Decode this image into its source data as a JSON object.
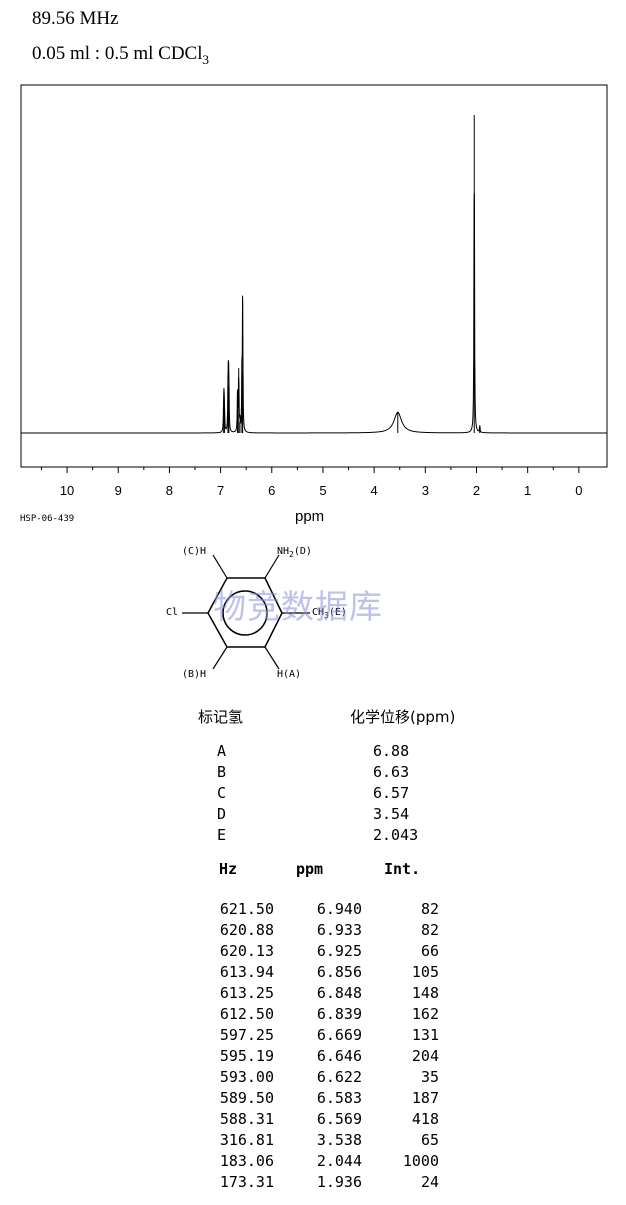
{
  "header": {
    "frequency": "89.56 MHz",
    "sample": "0.05 ml : 0.5 ml CDCl",
    "sample_subscript": "3"
  },
  "chart_data": {
    "type": "line",
    "title": "",
    "xlabel": "ppm",
    "ylabel": "",
    "xlim": [
      10.9,
      -0.55
    ],
    "x_reversed": true,
    "x_ticks": [
      "10",
      "9",
      "8",
      "7",
      "6",
      "5",
      "4",
      "3",
      "2",
      "1",
      "0"
    ],
    "grid": false,
    "peaks": [
      {
        "ppm": 6.94,
        "int": 82
      },
      {
        "ppm": 6.933,
        "int": 82
      },
      {
        "ppm": 6.925,
        "int": 66
      },
      {
        "ppm": 6.856,
        "int": 105
      },
      {
        "ppm": 6.848,
        "int": 148
      },
      {
        "ppm": 6.839,
        "int": 162
      },
      {
        "ppm": 6.669,
        "int": 131
      },
      {
        "ppm": 6.646,
        "int": 204
      },
      {
        "ppm": 6.622,
        "int": 35
      },
      {
        "ppm": 6.583,
        "int": 187
      },
      {
        "ppm": 6.569,
        "int": 418
      },
      {
        "ppm": 3.538,
        "int": 65
      },
      {
        "ppm": 2.044,
        "int": 1000
      },
      {
        "ppm": 1.936,
        "int": 24
      }
    ]
  },
  "spectrum_code": "HSP-06-439",
  "structure": {
    "label_c": "(C)H",
    "label_nh2": "NH",
    "label_nh2_sub": "2",
    "label_d": "(D)",
    "label_cl": "Cl",
    "label_ch3": "CH",
    "label_ch3_sub": "3",
    "label_e": "(E)",
    "label_b": "(B)H",
    "label_a": "H(A)"
  },
  "watermark": "物竞数据库",
  "assignments": {
    "col1": "标记氢",
    "col2": "化学位移(ppm)",
    "rows": [
      {
        "label": "A",
        "shift": "6.88"
      },
      {
        "label": "B",
        "shift": "6.63"
      },
      {
        "label": "C",
        "shift": "6.57"
      },
      {
        "label": "D",
        "shift": "3.54"
      },
      {
        "label": "E",
        "shift": "2.043"
      }
    ]
  },
  "peak_table": {
    "headers": [
      "Hz",
      "ppm",
      "Int."
    ],
    "rows": [
      [
        "621.50",
        "6.940",
        "82"
      ],
      [
        "620.88",
        "6.933",
        "82"
      ],
      [
        "620.13",
        "6.925",
        "66"
      ],
      [
        "613.94",
        "6.856",
        "105"
      ],
      [
        "613.25",
        "6.848",
        "148"
      ],
      [
        "612.50",
        "6.839",
        "162"
      ],
      [
        "597.25",
        "6.669",
        "131"
      ],
      [
        "595.19",
        "6.646",
        "204"
      ],
      [
        "593.00",
        "6.622",
        "35"
      ],
      [
        "589.50",
        "6.583",
        "187"
      ],
      [
        "588.31",
        "6.569",
        "418"
      ],
      [
        "316.81",
        "3.538",
        "65"
      ],
      [
        "183.06",
        "2.044",
        "1000"
      ],
      [
        "173.31",
        "1.936",
        "24"
      ]
    ]
  }
}
